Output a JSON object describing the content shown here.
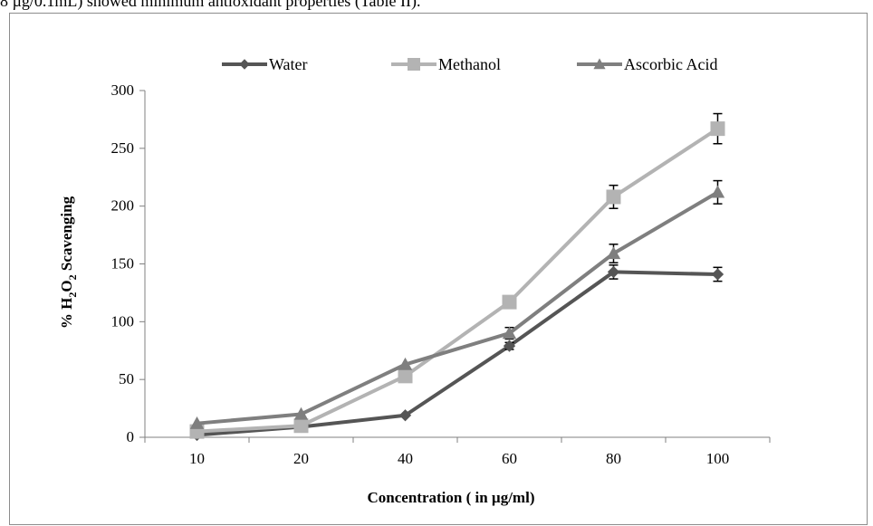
{
  "caption_text": "8 µg/0.1mL) showed minimum antioxidant properties (Table II).",
  "chart_data": {
    "type": "line",
    "title": "",
    "categories": [
      "10",
      "20",
      "40",
      "60",
      "80",
      "100"
    ],
    "xlabel": "Concentration ( in µg/ml)",
    "ylabel_parts": {
      "pre": "% H",
      "sub1": "2",
      "mid": "O",
      "sub2": "2",
      "post": " Scavenging"
    },
    "ylim": [
      0,
      300
    ],
    "yticks": [
      0,
      50,
      100,
      150,
      200,
      250,
      300
    ],
    "grid": false,
    "legend_position": "top",
    "series": [
      {
        "name": "Water",
        "marker": "diamond",
        "color": "#555555",
        "values": [
          2,
          9,
          19,
          79,
          143,
          141
        ],
        "errors": [
          0,
          0,
          0,
          3,
          6,
          6
        ]
      },
      {
        "name": "Methanol",
        "marker": "square",
        "color": "#b3b3b3",
        "values": [
          5,
          10,
          53,
          117,
          208,
          267
        ],
        "errors": [
          0,
          0,
          0,
          0,
          10,
          13
        ]
      },
      {
        "name": "Ascorbic Acid",
        "marker": "triangle",
        "color": "#7f7f7f",
        "values": [
          12,
          20,
          63,
          90,
          159,
          212
        ],
        "errors": [
          0,
          0,
          0,
          5,
          8,
          10
        ]
      }
    ]
  }
}
